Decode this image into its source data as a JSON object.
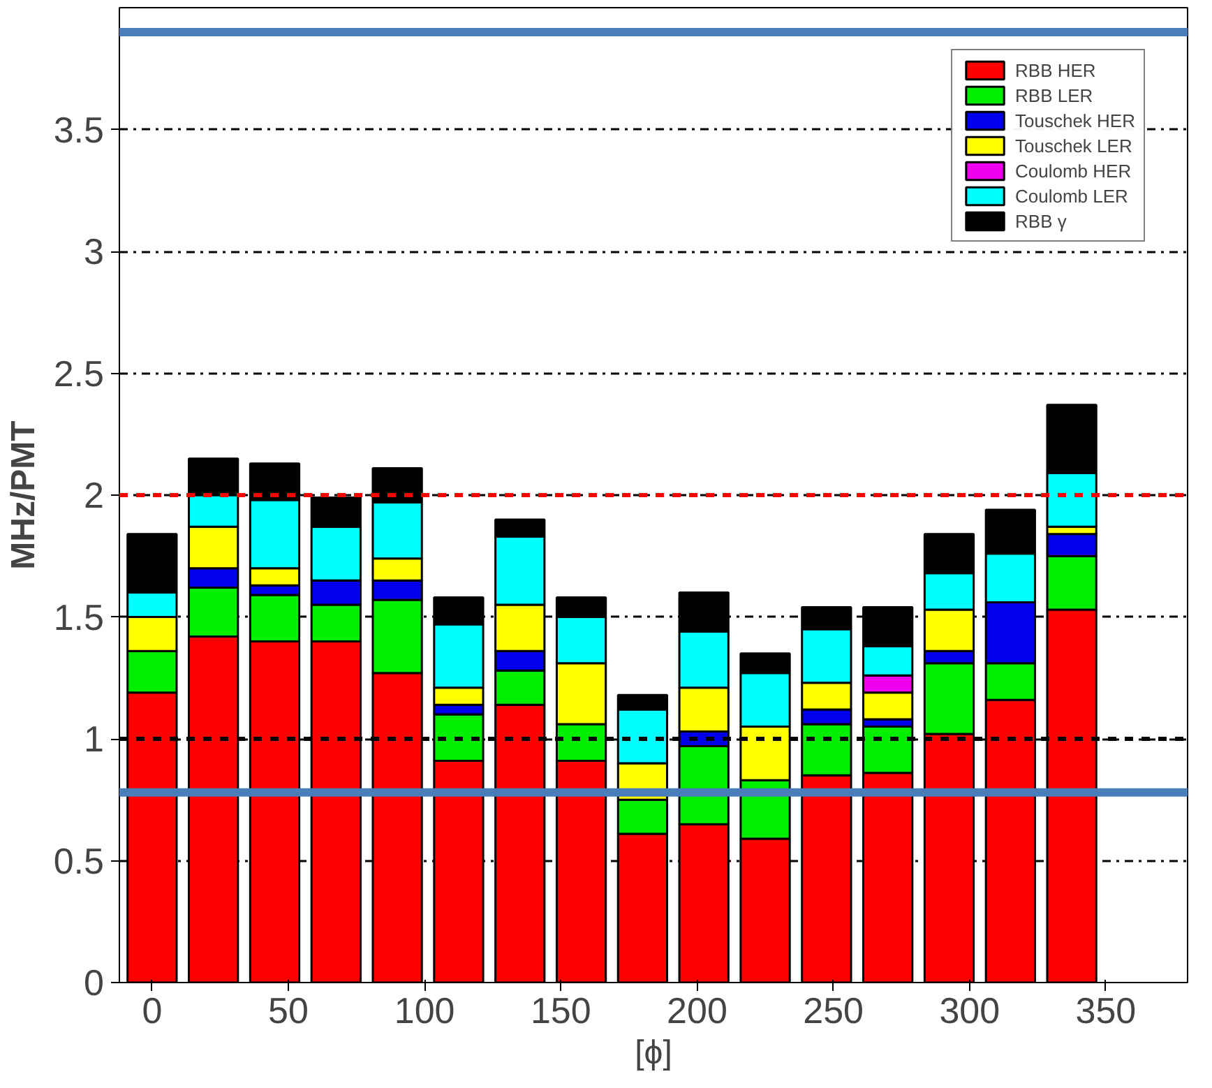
{
  "chart_data": {
    "type": "bar",
    "stacked": true,
    "ylabel": "MHz/PMT",
    "xlabel": "[ϕ]",
    "x": [
      0,
      22.5,
      45,
      67.5,
      90,
      112.5,
      135,
      157.5,
      180,
      202.5,
      225,
      247.5,
      270,
      292.5,
      315,
      337.5
    ],
    "series": [
      {
        "name": "RBB HER",
        "color": "#ff0000",
        "values": [
          1.19,
          1.42,
          1.4,
          1.4,
          1.27,
          0.91,
          1.14,
          0.91,
          0.61,
          0.65,
          0.59,
          0.85,
          0.86,
          1.02,
          1.16,
          1.53
        ]
      },
      {
        "name": "RBB LER",
        "color": "#00ee00",
        "values": [
          0.17,
          0.2,
          0.19,
          0.15,
          0.3,
          0.19,
          0.14,
          0.15,
          0.14,
          0.32,
          0.24,
          0.21,
          0.19,
          0.29,
          0.15,
          0.22
        ]
      },
      {
        "name": "Touschek HER",
        "color": "#0000ee",
        "values": [
          null,
          0.08,
          0.04,
          0.1,
          0.08,
          0.04,
          0.08,
          null,
          null,
          0.06,
          null,
          0.06,
          0.03,
          0.05,
          0.25,
          0.09
        ]
      },
      {
        "name": "Touschek LER",
        "color": "#ffff00",
        "values": [
          0.14,
          0.17,
          0.07,
          null,
          0.09,
          0.07,
          0.19,
          0.25,
          0.15,
          0.18,
          0.22,
          0.11,
          0.11,
          0.17,
          null,
          0.03
        ]
      },
      {
        "name": "Coulomb HER",
        "color": "#ee00ee",
        "values": [
          null,
          null,
          null,
          null,
          null,
          null,
          null,
          null,
          null,
          null,
          null,
          null,
          0.07,
          null,
          null,
          null
        ]
      },
      {
        "name": "Coulomb LER",
        "color": "#00ffff",
        "values": [
          0.1,
          0.13,
          0.28,
          0.22,
          0.23,
          0.26,
          0.28,
          0.19,
          0.22,
          0.23,
          0.22,
          0.22,
          0.12,
          0.15,
          0.2,
          0.22
        ]
      },
      {
        "name": "RBB γ",
        "color": "#000000",
        "values": [
          0.24,
          0.15,
          0.15,
          0.12,
          0.14,
          0.11,
          0.07,
          0.08,
          0.06,
          0.16,
          0.08,
          0.09,
          0.16,
          0.16,
          0.18,
          0.28
        ]
      }
    ],
    "xlim": [
      -12,
      380
    ],
    "xticks": [
      0,
      50,
      100,
      150,
      200,
      250,
      300,
      350
    ],
    "ylim": [
      0,
      4
    ],
    "yticks": [
      0,
      0.5,
      1,
      1.5,
      2,
      2.5,
      3,
      3.5
    ],
    "grid": "y",
    "legend": "top right",
    "ref_lines": [
      {
        "axis": "y",
        "value": 2,
        "color": "#ff0000",
        "line_style": "dashed"
      },
      {
        "axis": "y",
        "value": 1,
        "color": "#000000",
        "line_style": "dashed"
      },
      {
        "axis": "y",
        "value": 3.9,
        "color": "#4a7ebb",
        "line_style": "solid"
      },
      {
        "axis": "y",
        "value": 0.78,
        "color": "#4a7ebb",
        "line_style": "solid"
      }
    ]
  }
}
